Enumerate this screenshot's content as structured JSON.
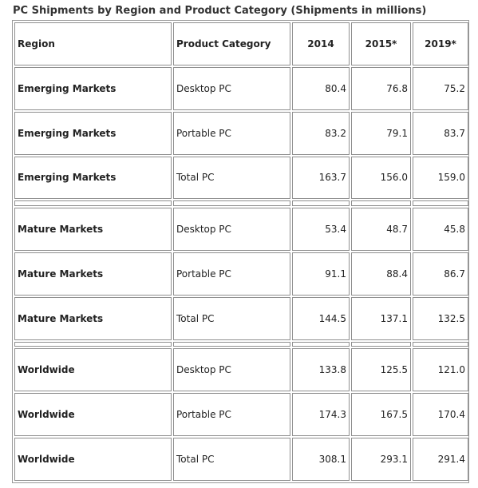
{
  "caption": "PC Shipments by Region and Product Category (Shipments in millions)",
  "header": {
    "region": "Region",
    "category": "Product Category",
    "y2014": "2014",
    "y2015": "2015*",
    "y2019": "2019*"
  },
  "rows": [
    {
      "region": "Emerging Markets",
      "category": "Desktop PC",
      "v2014": "80.4",
      "v2015": "76.8",
      "v2019": "75.2"
    },
    {
      "region": "Emerging Markets",
      "category": "Portable PC",
      "v2014": "83.2",
      "v2015": "79.1",
      "v2019": "83.7"
    },
    {
      "region": "Emerging Markets",
      "category": "Total PC",
      "v2014": "163.7",
      "v2015": "156.0",
      "v2019": "159.0"
    },
    {
      "region": "",
      "category": "",
      "v2014": "",
      "v2015": "",
      "v2019": ""
    },
    {
      "region": "Mature Markets",
      "category": "Desktop PC",
      "v2014": "53.4",
      "v2015": "48.7",
      "v2019": "45.8"
    },
    {
      "region": "Mature Markets",
      "category": "Portable PC",
      "v2014": "91.1",
      "v2015": "88.4",
      "v2019": "86.7"
    },
    {
      "region": "Mature Markets",
      "category": "Total PC",
      "v2014": "144.5",
      "v2015": "137.1",
      "v2019": "132.5"
    },
    {
      "region": "",
      "category": "",
      "v2014": "",
      "v2015": "",
      "v2019": ""
    },
    {
      "region": "Worldwide",
      "category": "Desktop PC",
      "v2014": "133.8",
      "v2015": "125.5",
      "v2019": "121.0"
    },
    {
      "region": "Worldwide",
      "category": "Portable PC",
      "v2014": "174.3",
      "v2015": "167.5",
      "v2019": "170.4"
    },
    {
      "region": "Worldwide",
      "category": "Total PC",
      "v2014": "308.1",
      "v2015": "293.1",
      "v2019": "291.4"
    }
  ]
}
